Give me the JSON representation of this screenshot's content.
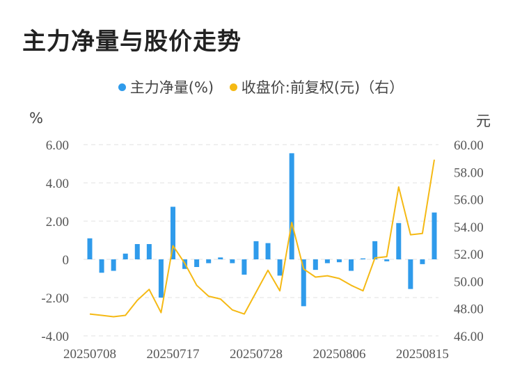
{
  "title": "主力净量与股价走势",
  "legend": {
    "bar_label": "主力净量(%)",
    "line_label": "收盘价:前复权(元)（右）"
  },
  "units": {
    "left": "%",
    "right": "元"
  },
  "colors": {
    "bar": "#2f9beb",
    "line": "#f5b914",
    "grid": "#e0e0e0"
  },
  "chart_data": {
    "type": "bar",
    "x_ticks": [
      "20250708",
      "20250717",
      "20250728",
      "20250806",
      "20250815"
    ],
    "x": [
      "20250708",
      "20250709",
      "20250710",
      "20250711",
      "20250714",
      "20250715",
      "20250716",
      "20250717",
      "20250718",
      "20250721",
      "20250722",
      "20250723",
      "20250724",
      "20250725",
      "20250728",
      "20250729",
      "20250730",
      "20250731",
      "20250801",
      "20250804",
      "20250805",
      "20250806",
      "20250807",
      "20250808",
      "20250811",
      "20250812",
      "20250813",
      "20250814",
      "20250815",
      "20250818"
    ],
    "y_left_ticks": [
      "6.00",
      "4.00",
      "2.00",
      "0",
      "-2.00",
      "-4.00"
    ],
    "y_right_ticks": [
      "60.00",
      "58.00",
      "56.00",
      "54.00",
      "52.00",
      "50.00",
      "48.00",
      "46.00"
    ],
    "ylim_left": [
      -4,
      6
    ],
    "ylim_right": [
      46,
      60
    ],
    "series": [
      {
        "name": "主力净量(%)",
        "type": "bar",
        "axis": "left",
        "values": [
          1.1,
          -0.7,
          -0.6,
          0.3,
          0.8,
          0.8,
          -2.0,
          2.75,
          -0.5,
          -0.4,
          -0.2,
          0.1,
          -0.2,
          -0.8,
          0.95,
          0.85,
          -0.85,
          5.55,
          -2.45,
          -0.55,
          -0.2,
          -0.15,
          -0.6,
          0.05,
          0.95,
          -0.1,
          1.9,
          -1.55,
          -0.25,
          2.45
        ]
      },
      {
        "name": "收盘价:前复权(元)（右）",
        "type": "line",
        "axis": "right",
        "values": [
          47.6,
          47.5,
          47.4,
          47.5,
          48.6,
          49.4,
          47.7,
          52.6,
          51.3,
          49.7,
          48.9,
          48.7,
          47.9,
          47.6,
          49.2,
          50.8,
          49.3,
          54.3,
          50.9,
          50.3,
          50.4,
          50.2,
          49.7,
          49.3,
          51.7,
          51.8,
          56.9,
          53.4,
          53.5,
          58.9
        ]
      }
    ],
    "grid": true,
    "legend_position": "top-center"
  }
}
